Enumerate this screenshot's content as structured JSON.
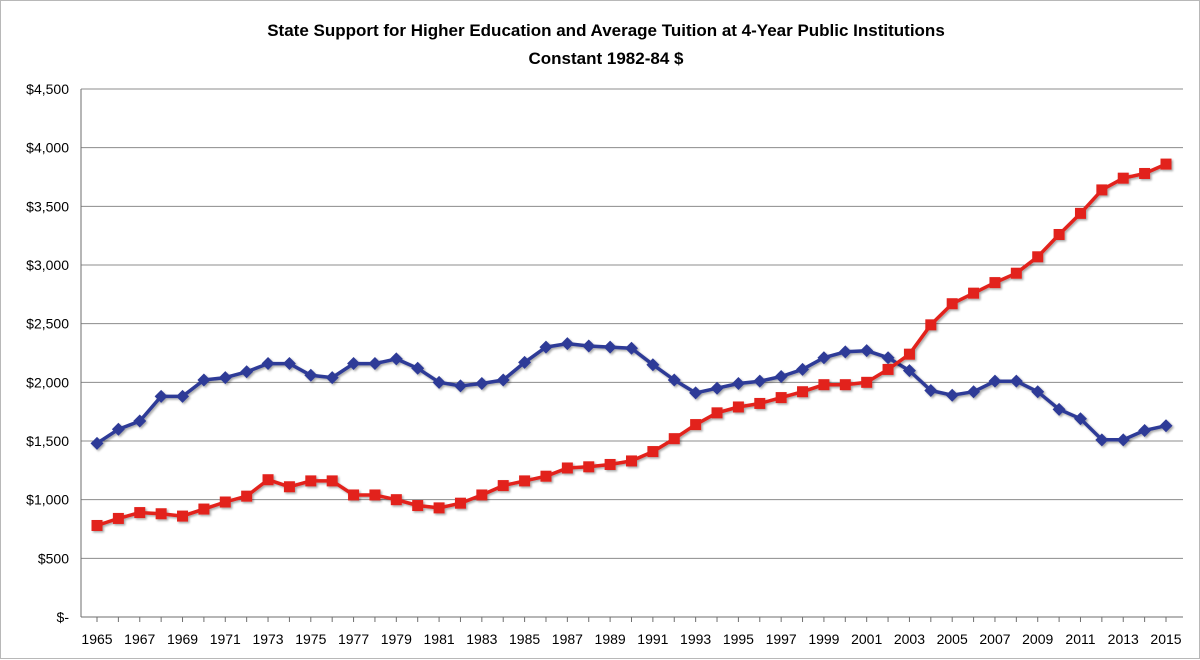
{
  "chart_data": {
    "type": "line",
    "title": "State Support for Higher Education and Average Tuition at 4-Year Public Institutions",
    "subtitle": "Constant 1982-84 $",
    "xlabel": "",
    "ylabel": "",
    "ylim": [
      0,
      4500
    ],
    "yticks": [
      0,
      500,
      1000,
      1500,
      2000,
      2500,
      3000,
      3500,
      4000,
      4500
    ],
    "ytick_labels": [
      "$-",
      "$500",
      "$1,000",
      "$1,500",
      "$2,000",
      "$2,500",
      "$3,000",
      "$3,500",
      "$4,000",
      "$4,500"
    ],
    "xtick_labels": [
      "1965",
      "1967",
      "1969",
      "1971",
      "1973",
      "1975",
      "1977",
      "1979",
      "1981",
      "1983",
      "1985",
      "1987",
      "1989",
      "1991",
      "1993",
      "1995",
      "1997",
      "1999",
      "2001",
      "2003",
      "2005",
      "2007",
      "2009",
      "2011",
      "2013",
      "2015"
    ],
    "grid": "horizontal",
    "legend": "none",
    "x": [
      1965,
      1966,
      1967,
      1968,
      1969,
      1970,
      1971,
      1972,
      1973,
      1974,
      1975,
      1976,
      1977,
      1978,
      1979,
      1980,
      1981,
      1982,
      1983,
      1984,
      1985,
      1986,
      1987,
      1988,
      1989,
      1990,
      1991,
      1992,
      1993,
      1994,
      1995,
      1996,
      1997,
      1998,
      1999,
      2000,
      2001,
      2002,
      2003,
      2004,
      2005,
      2006,
      2007,
      2008,
      2009,
      2010,
      2011,
      2012,
      2013,
      2014,
      2015
    ],
    "series": [
      {
        "color": "#2e3b97",
        "marker": "diamond",
        "values": [
          1480,
          1600,
          1670,
          1880,
          1880,
          2020,
          2040,
          2090,
          2160,
          2160,
          2060,
          2040,
          2160,
          2160,
          2200,
          2120,
          2000,
          1970,
          1990,
          2020,
          2170,
          2300,
          2330,
          2310,
          2300,
          2290,
          2150,
          2020,
          1910,
          1950,
          1990,
          2010,
          2050,
          2110,
          2210,
          2260,
          2270,
          2210,
          2100,
          1930,
          1890,
          1920,
          2010,
          2010,
          1920,
          1770,
          1690,
          1510,
          1510,
          1590,
          1630
        ]
      },
      {
        "color": "#e2211c",
        "marker": "square",
        "values": [
          780,
          840,
          890,
          880,
          860,
          920,
          980,
          1030,
          1170,
          1110,
          1160,
          1160,
          1040,
          1040,
          1000,
          950,
          930,
          970,
          1040,
          1120,
          1160,
          1200,
          1270,
          1280,
          1300,
          1330,
          1410,
          1520,
          1640,
          1740,
          1790,
          1820,
          1870,
          1920,
          1980,
          1980,
          2000,
          2110,
          2240,
          2490,
          2670,
          2760,
          2850,
          2930,
          3070,
          3260,
          3440,
          3640,
          3740,
          3780,
          3860
        ]
      }
    ]
  }
}
